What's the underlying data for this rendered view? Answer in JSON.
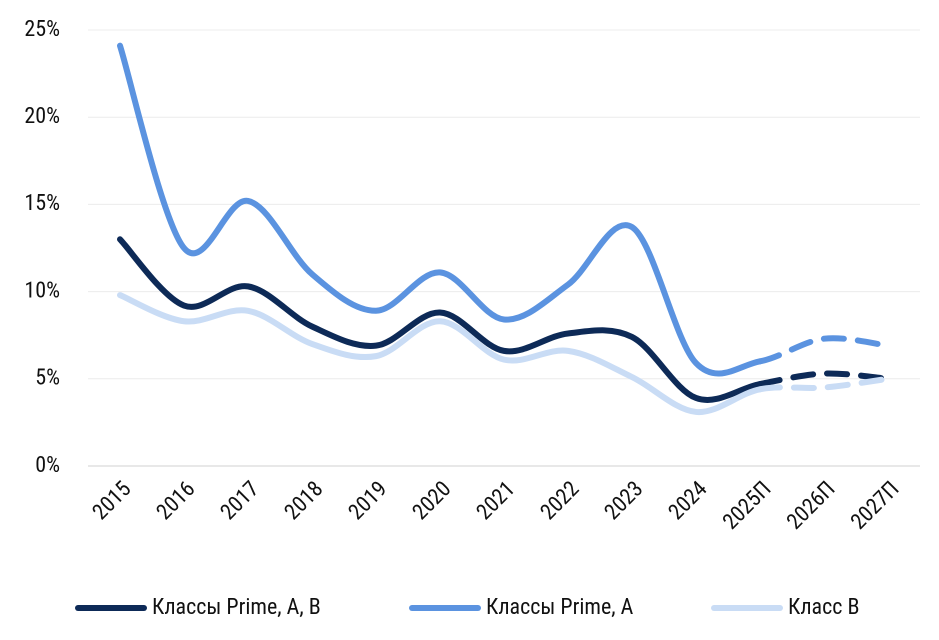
{
  "chart_data": {
    "type": "line",
    "categories": [
      "2015",
      "2016",
      "2017",
      "2018",
      "2019",
      "2020",
      "2021",
      "2022",
      "2023",
      "2024",
      "2025П",
      "2026П",
      "2027П"
    ],
    "series": [
      {
        "name": "Классы Prime, A, B",
        "color": "#0d2a57",
        "values": [
          13.0,
          9.2,
          10.3,
          8.0,
          6.9,
          8.8,
          6.6,
          7.6,
          7.4,
          3.9,
          4.7,
          5.3,
          5.0
        ]
      },
      {
        "name": "Классы Prime, A",
        "color": "#5b93e0",
        "values": [
          24.1,
          12.5,
          15.2,
          11.0,
          8.9,
          11.1,
          8.4,
          10.4,
          13.7,
          5.9,
          6.0,
          7.3,
          6.9
        ]
      },
      {
        "name": "Класс В",
        "color": "#c9dcf5",
        "values": [
          9.8,
          8.3,
          8.9,
          7.0,
          6.3,
          8.3,
          6.1,
          6.6,
          5.1,
          3.1,
          4.4,
          4.5,
          5.0
        ]
      }
    ],
    "dashed_from": 10,
    "ylim": [
      0,
      25
    ],
    "yticks": [
      {
        "value": 0,
        "label": "0%"
      },
      {
        "value": 5,
        "label": "5%"
      },
      {
        "value": 10,
        "label": "10%"
      },
      {
        "value": 15,
        "label": "15%"
      },
      {
        "value": 20,
        "label": "20%"
      },
      {
        "value": 25,
        "label": "25%"
      }
    ],
    "grid": true,
    "legend": "bottom"
  }
}
